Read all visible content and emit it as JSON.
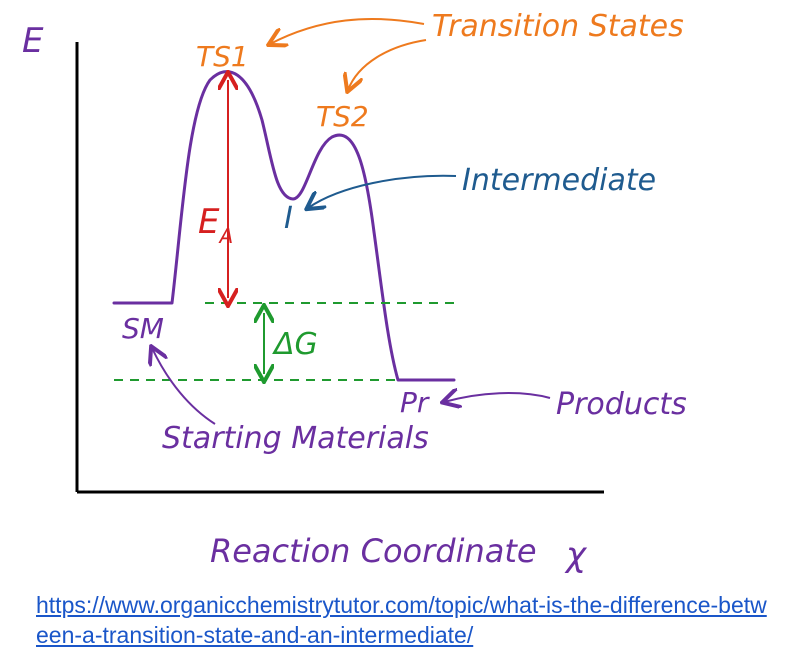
{
  "labels": {
    "y_axis": "E",
    "x_axis": "Reaction Coordinate",
    "ts1": "TS1",
    "ts2": "TS2",
    "transition_states": "Transition States",
    "intermediate_symbol": "I",
    "intermediate": "Intermediate",
    "ea_main": "E",
    "ea_sub": "A",
    "delta_g": "ΔG",
    "sm": "SM",
    "starting_materials": "Starting Materials",
    "pr": "Pr",
    "products": "Products",
    "x_symbol": "χ"
  },
  "source": {
    "url": "https://www.organicchemistrytutor.com/topic/what-is-the-difference-between-a-transition-state-and-an-intermediate/"
  },
  "colors": {
    "axis": "#000000",
    "curve": "#6a2fa0",
    "transition": "#ee7a1e",
    "intermediate": "#1f5b8f",
    "activation": "#d62020",
    "gibbs": "#1f9a2f",
    "link": "#1a56c9"
  }
}
